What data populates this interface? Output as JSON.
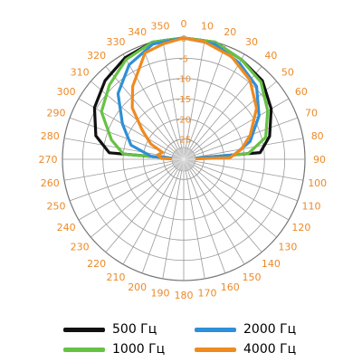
{
  "chart_data": {
    "type": "line",
    "coordinate_system": "polar",
    "angular_ticks": [
      0,
      10,
      20,
      30,
      40,
      50,
      60,
      70,
      80,
      90,
      100,
      110,
      120,
      130,
      140,
      150,
      160,
      170,
      180,
      190,
      200,
      210,
      220,
      230,
      240,
      250,
      260,
      270,
      280,
      290,
      300,
      310,
      320,
      330,
      340,
      350
    ],
    "radial_ticks": [
      0,
      -5,
      -10,
      -15,
      -20,
      -25,
      -30
    ],
    "radial_range": [
      -30,
      0
    ],
    "grid": true,
    "legend_position": "bottom",
    "series": [
      {
        "name": "500 Гц",
        "color": "#111111",
        "points": [
          [
            270,
            -30
          ],
          [
            275,
            -11.5
          ],
          [
            285,
            -7.5
          ],
          [
            300,
            -4.5
          ],
          [
            315,
            -2.5
          ],
          [
            330,
            -1
          ],
          [
            345,
            0
          ],
          [
            0,
            0
          ],
          [
            15,
            0
          ],
          [
            30,
            -1.5
          ],
          [
            45,
            -2.5
          ],
          [
            60,
            -5
          ],
          [
            75,
            -8
          ],
          [
            85,
            -11
          ],
          [
            90,
            -30
          ]
        ]
      },
      {
        "name": "1000 Гц",
        "color": "#66c244",
        "points": [
          [
            270,
            -30
          ],
          [
            275,
            -15
          ],
          [
            285,
            -11.5
          ],
          [
            300,
            -6.5
          ],
          [
            315,
            -4
          ],
          [
            330,
            -1.5
          ],
          [
            345,
            0
          ],
          [
            0,
            0
          ],
          [
            15,
            0
          ],
          [
            30,
            -1.5
          ],
          [
            45,
            -3
          ],
          [
            60,
            -6
          ],
          [
            75,
            -9
          ],
          [
            85,
            -14
          ],
          [
            90,
            -30
          ]
        ]
      },
      {
        "name": "2000 Гц",
        "color": "#2f8fd8",
        "points": [
          [
            270,
            -30
          ],
          [
            275,
            -22
          ],
          [
            285,
            -16.5
          ],
          [
            300,
            -12.5
          ],
          [
            315,
            -7
          ],
          [
            330,
            -3
          ],
          [
            345,
            -0.5
          ],
          [
            0,
            0
          ],
          [
            15,
            -0.5
          ],
          [
            30,
            -2.5
          ],
          [
            45,
            -4.5
          ],
          [
            60,
            -8.5
          ],
          [
            75,
            -13
          ],
          [
            85,
            -17.5
          ],
          [
            90,
            -30
          ]
        ]
      },
      {
        "name": "4000 Гц",
        "color": "#ef8a1f",
        "points": [
          [
            270,
            -30
          ],
          [
            272,
            -24.5
          ],
          [
            280,
            -23.5
          ],
          [
            288,
            -24.5
          ],
          [
            295,
            -21
          ],
          [
            305,
            -17.5
          ],
          [
            315,
            -12
          ],
          [
            325,
            -8
          ],
          [
            340,
            -2
          ],
          [
            350,
            -1
          ],
          [
            0,
            0
          ],
          [
            10,
            -0.5
          ],
          [
            25,
            -2
          ],
          [
            40,
            -4.5
          ],
          [
            55,
            -8
          ],
          [
            70,
            -12.5
          ],
          [
            80,
            -15.5
          ],
          [
            88,
            -18.5
          ],
          [
            90,
            -30
          ]
        ]
      }
    ]
  }
}
